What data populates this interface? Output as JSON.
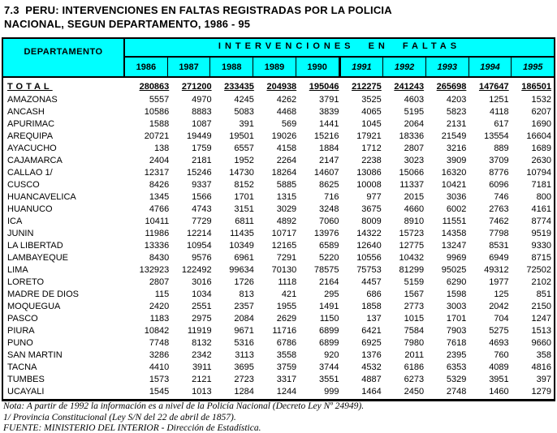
{
  "title": {
    "line1": "7.3  PERU: INTERVENCIONES EN FALTAS REGISTRADAS POR LA POLICIA",
    "line2": "NACIONAL, SEGUN DEPARTAMENTO, 1986 - 95"
  },
  "colors": {
    "header_bg": "#00ffff",
    "border": "#000000"
  },
  "chart_data": {
    "type": "table",
    "title": "Intervenciones en faltas registradas por la Policia Nacional, segun departamento, 1986-95"
  },
  "table": {
    "dept_header": "DEPARTAMENTO",
    "group_header": "INTERVENCIONES EN FALTAS",
    "years": [
      "1986",
      "1987",
      "1988",
      "1989",
      "1990",
      "1991",
      "1992",
      "1993",
      "1994",
      "1995"
    ],
    "total_row": {
      "label": "TOTAL",
      "values": [
        280863,
        271200,
        233435,
        204938,
        195046,
        212275,
        241243,
        265698,
        147647,
        186501
      ]
    },
    "rows": [
      {
        "label": "AMAZONAS",
        "values": [
          5557,
          4970,
          4245,
          4262,
          3791,
          3525,
          4603,
          4203,
          1251,
          1532
        ]
      },
      {
        "label": "ANCASH",
        "values": [
          10586,
          8883,
          5083,
          4468,
          3839,
          4065,
          5195,
          5823,
          4118,
          6207
        ]
      },
      {
        "label": "APURIMAC",
        "values": [
          1588,
          1087,
          391,
          569,
          1441,
          1045,
          2064,
          2131,
          617,
          1690
        ]
      },
      {
        "label": "AREQUIPA",
        "values": [
          20721,
          19449,
          19501,
          19026,
          15216,
          17921,
          18336,
          21549,
          13554,
          16604
        ]
      },
      {
        "label": "AYACUCHO",
        "values": [
          138,
          1759,
          6557,
          4158,
          1884,
          1712,
          2807,
          3216,
          889,
          1689
        ]
      },
      {
        "label": "CAJAMARCA",
        "values": [
          2404,
          2181,
          1952,
          2264,
          2147,
          2238,
          3023,
          3909,
          3709,
          2630
        ]
      },
      {
        "label": "CALLAO  1/",
        "values": [
          12317,
          15246,
          14730,
          18264,
          14607,
          13086,
          15066,
          16320,
          8776,
          10794
        ]
      },
      {
        "label": "CUSCO",
        "values": [
          8426,
          9337,
          8152,
          5885,
          8625,
          10008,
          11337,
          10421,
          6096,
          7181
        ]
      },
      {
        "label": "HUANCAVELICA",
        "values": [
          1345,
          1566,
          1701,
          1315,
          716,
          977,
          2015,
          3036,
          746,
          800
        ]
      },
      {
        "label": "HUANUCO",
        "values": [
          4766,
          4743,
          3151,
          3029,
          3248,
          3675,
          4660,
          6002,
          2763,
          4161
        ]
      },
      {
        "label": "ICA",
        "values": [
          10411,
          7729,
          6811,
          4892,
          7060,
          8009,
          8910,
          11551,
          7462,
          8774
        ]
      },
      {
        "label": "JUNIN",
        "values": [
          11986,
          12214,
          11435,
          10717,
          13976,
          14322,
          15723,
          14358,
          7798,
          9519
        ]
      },
      {
        "label": "LA LIBERTAD",
        "values": [
          13336,
          10954,
          10349,
          12165,
          6589,
          12640,
          12775,
          13247,
          8531,
          9330
        ]
      },
      {
        "label": "LAMBAYEQUE",
        "values": [
          8430,
          9576,
          6961,
          7291,
          5220,
          10556,
          10432,
          9969,
          6949,
          8715
        ]
      },
      {
        "label": "LIMA",
        "values": [
          132923,
          122492,
          99634,
          70130,
          78575,
          75753,
          81299,
          95025,
          49312,
          72502
        ]
      },
      {
        "label": "LORETO",
        "values": [
          2807,
          3016,
          1726,
          1118,
          2164,
          4457,
          5159,
          6290,
          1977,
          2102
        ]
      },
      {
        "label": "MADRE DE DIOS",
        "values": [
          115,
          1034,
          813,
          421,
          295,
          686,
          1567,
          1598,
          125,
          851
        ]
      },
      {
        "label": "MOQUEGUA",
        "values": [
          2420,
          2551,
          2357,
          1955,
          1491,
          1858,
          2773,
          3003,
          2042,
          2150
        ]
      },
      {
        "label": "PASCO",
        "values": [
          1183,
          2975,
          2084,
          2629,
          1150,
          137,
          1015,
          1701,
          704,
          1247
        ]
      },
      {
        "label": "PIURA",
        "values": [
          10842,
          11919,
          9671,
          11716,
          6899,
          6421,
          7584,
          7903,
          5275,
          1513
        ]
      },
      {
        "label": "PUNO",
        "values": [
          7748,
          8132,
          5316,
          6786,
          6899,
          6925,
          7980,
          7618,
          4693,
          9660
        ]
      },
      {
        "label": "SAN MARTIN",
        "values": [
          3286,
          2342,
          3113,
          3558,
          920,
          1376,
          2011,
          2395,
          760,
          358
        ]
      },
      {
        "label": "TACNA",
        "values": [
          4410,
          3911,
          3695,
          3759,
          3744,
          4532,
          6186,
          6353,
          4089,
          4816
        ]
      },
      {
        "label": "TUMBES",
        "values": [
          1573,
          2121,
          2723,
          3317,
          3551,
          4887,
          6273,
          5329,
          3951,
          397
        ]
      },
      {
        "label": "UCAYALI",
        "values": [
          1545,
          1013,
          1284,
          1244,
          999,
          1464,
          2450,
          2748,
          1460,
          1279
        ]
      }
    ]
  },
  "notes": [
    "Nota: A partir de 1992 la información es a nivel de la Policía Nacional (Decreto Ley Nº 24949).",
    "1/ Provincia Constitucional (Ley S/N del 22 de abril de 1857).",
    "FUENTE: MINISTERIO DEL INTERIOR - Dirección de Estadística."
  ]
}
